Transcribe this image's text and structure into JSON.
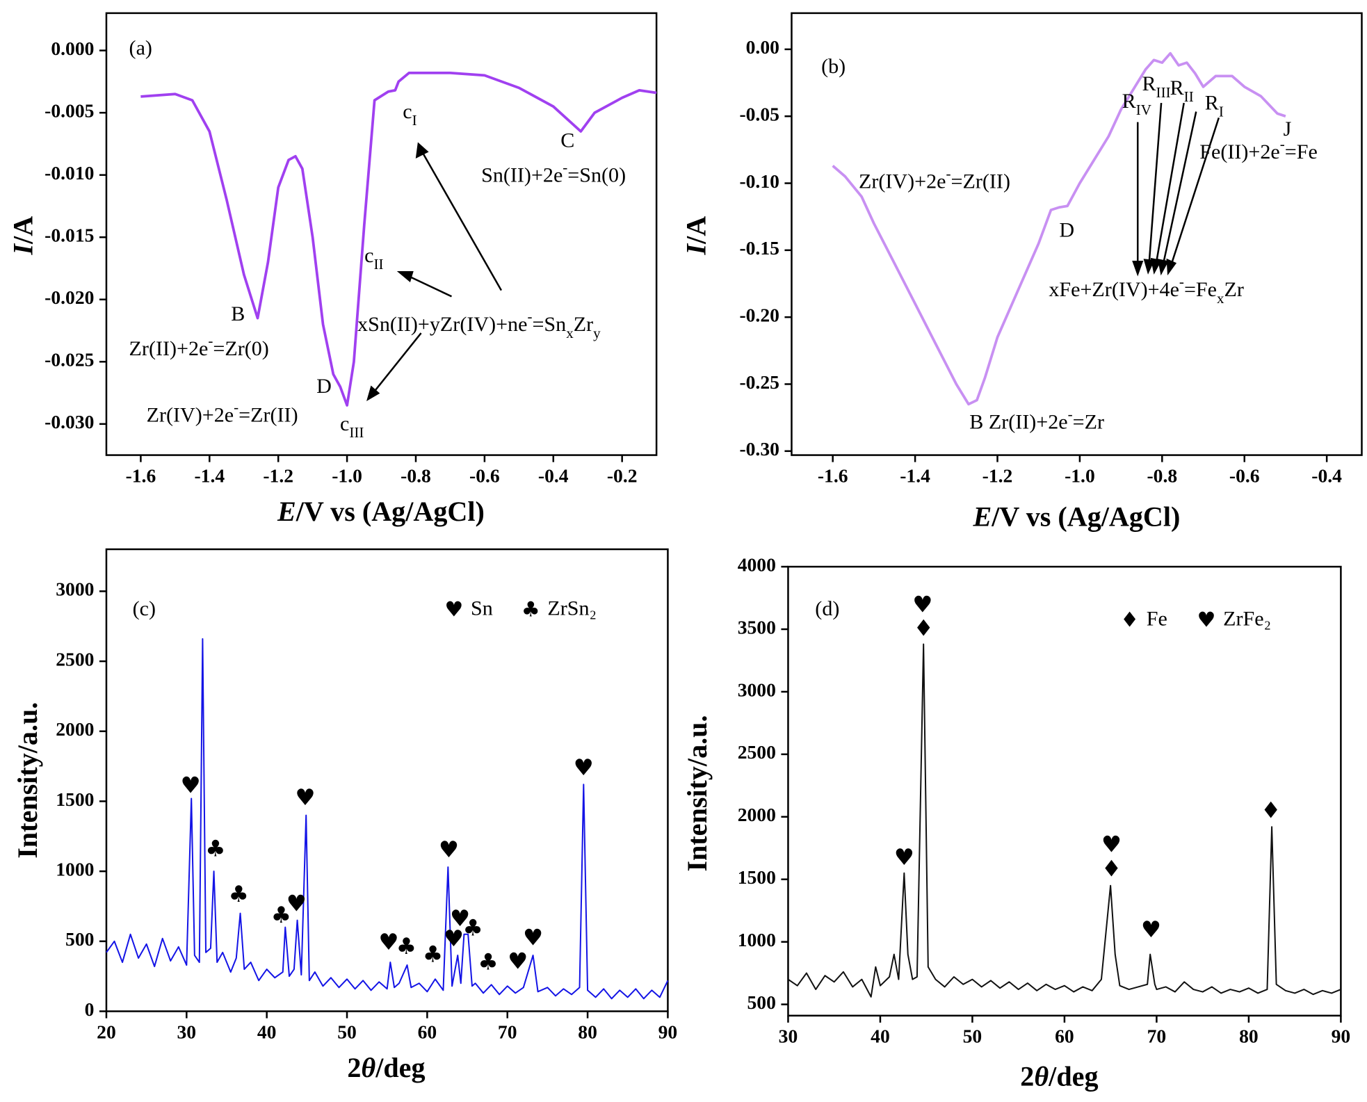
{
  "chart_data": [
    {
      "type": "line",
      "color": "#a040f0",
      "x": [
        -1.6,
        -1.5,
        -1.45,
        -1.4,
        -1.35,
        -1.3,
        -1.26,
        -1.23,
        -1.2,
        -1.17,
        -1.15,
        -1.13,
        -1.1,
        -1.07,
        -1.04,
        -1.02,
        -1.0,
        -0.98,
        -0.95,
        -0.92,
        -0.88,
        -0.86,
        -0.85,
        -0.82,
        -0.7,
        -0.6,
        -0.5,
        -0.4,
        -0.32,
        -0.28,
        -0.2,
        -0.15,
        -0.1
      ],
      "values": [
        -0.0037,
        -0.0035,
        -0.004,
        -0.0065,
        -0.012,
        -0.018,
        -0.0215,
        -0.017,
        -0.011,
        -0.0088,
        -0.0085,
        -0.0095,
        -0.015,
        -0.022,
        -0.026,
        -0.027,
        -0.0285,
        -0.025,
        -0.014,
        -0.004,
        -0.0033,
        -0.0032,
        -0.0025,
        -0.0018,
        -0.0018,
        -0.002,
        -0.003,
        -0.0045,
        -0.0065,
        -0.005,
        -0.0038,
        -0.0032,
        -0.0034
      ],
      "xlim": [
        -1.7,
        -0.1
      ],
      "ylim": [
        -0.0325,
        0.003
      ],
      "xticks": [
        {
          "value": -1.6,
          "label": "-1.6"
        },
        {
          "value": -1.4,
          "label": "-1.4"
        },
        {
          "value": -1.2,
          "label": "-1.2"
        },
        {
          "value": -1.0,
          "label": "-1.0"
        },
        {
          "value": -0.8,
          "label": "-0.8"
        },
        {
          "value": -0.6,
          "label": "-0.6"
        },
        {
          "value": -0.4,
          "label": "-0.4"
        },
        {
          "value": -0.2,
          "label": "-0.2"
        }
      ],
      "yticks": [
        {
          "value": 0,
          "label": "0.000"
        },
        {
          "value": -0.005,
          "label": "-0.005"
        },
        {
          "value": -0.01,
          "label": "-0.010"
        },
        {
          "value": -0.015,
          "label": "-0.015"
        },
        {
          "value": -0.02,
          "label": "-0.020"
        },
        {
          "value": -0.025,
          "label": "-0.025"
        },
        {
          "value": -0.03,
          "label": "-0.030"
        }
      ],
      "x_label": [
        {
          "t": "E",
          "style": "i"
        },
        "/V vs (Ag/AgCl)"
      ],
      "y_label": [
        {
          "t": "I",
          "style": "i"
        },
        "/A"
      ],
      "annotations": [
        [
          "(a)"
        ],
        [
          "c",
          {
            "t": "I",
            "style": "sub"
          }
        ],
        [
          "C"
        ],
        [
          "Sn(II)+2e",
          {
            "t": "-",
            "style": "sup"
          },
          "=Sn(0)"
        ],
        [
          "c",
          {
            "t": "II",
            "style": "sub"
          }
        ],
        [
          "B"
        ],
        [
          "xSn(II)+yZr(IV)+ne",
          {
            "t": "-",
            "style": "sup"
          },
          "=Sn",
          {
            "t": "x",
            "style": "sub"
          },
          "Zr",
          {
            "t": "y",
            "style": "sub"
          }
        ],
        [
          "Zr(II)+2e",
          {
            "t": "-",
            "style": "sup"
          },
          "=Zr(0)"
        ],
        [
          "D"
        ],
        [
          "Zr(IV)+2e",
          {
            "t": "-",
            "style": "sup"
          },
          "=Zr(II)"
        ],
        [
          "c",
          {
            "t": "III",
            "style": "sub"
          }
        ]
      ]
    },
    {
      "type": "line",
      "color": "#c890f2",
      "x": [
        -1.6,
        -1.57,
        -1.53,
        -1.5,
        -1.45,
        -1.4,
        -1.35,
        -1.3,
        -1.27,
        -1.25,
        -1.23,
        -1.2,
        -1.15,
        -1.1,
        -1.07,
        -1.05,
        -1.03,
        -1.0,
        -0.97,
        -0.93,
        -0.9,
        -0.87,
        -0.84,
        -0.82,
        -0.8,
        -0.78,
        -0.76,
        -0.74,
        -0.72,
        -0.7,
        -0.67,
        -0.63,
        -0.6,
        -0.56,
        -0.52,
        -0.5
      ],
      "values": [
        -0.087,
        -0.095,
        -0.11,
        -0.13,
        -0.16,
        -0.19,
        -0.22,
        -0.25,
        -0.265,
        -0.262,
        -0.245,
        -0.215,
        -0.18,
        -0.145,
        -0.12,
        -0.118,
        -0.117,
        -0.1,
        -0.085,
        -0.065,
        -0.045,
        -0.03,
        -0.015,
        -0.008,
        -0.01,
        -0.003,
        -0.012,
        -0.01,
        -0.018,
        -0.028,
        -0.02,
        -0.02,
        -0.028,
        -0.035,
        -0.048,
        -0.05
      ],
      "xlim": [
        -1.7,
        -0.315
      ],
      "ylim": [
        -0.303,
        0.027
      ],
      "xticks": [
        {
          "value": -1.6,
          "label": "-1.6"
        },
        {
          "value": -1.4,
          "label": "-1.4"
        },
        {
          "value": -1.2,
          "label": "-1.2"
        },
        {
          "value": -1.0,
          "label": "-1.0"
        },
        {
          "value": -0.8,
          "label": "-0.8"
        },
        {
          "value": -0.6,
          "label": "-0.6"
        },
        {
          "value": -0.4,
          "label": "-0.4"
        }
      ],
      "yticks": [
        {
          "value": 0,
          "label": "0.00"
        },
        {
          "value": -0.05,
          "label": "-0.05"
        },
        {
          "value": -0.1,
          "label": "-0.10"
        },
        {
          "value": -0.15,
          "label": "-0.15"
        },
        {
          "value": -0.2,
          "label": "-0.20"
        },
        {
          "value": -0.25,
          "label": "-0.25"
        },
        {
          "value": -0.3,
          "label": "-0.30"
        }
      ],
      "x_label": [
        {
          "t": "E",
          "style": "i"
        },
        "/V vs (Ag/AgCl)"
      ],
      "y_label": [
        {
          "t": "I",
          "style": "i"
        },
        "/A"
      ],
      "annotations": [
        [
          "(b)"
        ],
        [
          "R",
          {
            "t": "IV",
            "style": "sub"
          }
        ],
        [
          "R",
          {
            "t": "III",
            "style": "sub"
          }
        ],
        [
          "R",
          {
            "t": "II",
            "style": "sub"
          }
        ],
        [
          "R",
          {
            "t": "I",
            "style": "sub"
          }
        ],
        [
          "J"
        ],
        [
          "Fe(II)+2e",
          {
            "t": "-",
            "style": "sup"
          },
          "=Fe"
        ],
        [
          "Zr(IV)+2e",
          {
            "t": "-",
            "style": "sup"
          },
          "=Zr(II)"
        ],
        [
          "D"
        ],
        [
          "xFe+Zr(IV)+4e",
          {
            "t": "-",
            "style": "sup"
          },
          "=Fe",
          {
            "t": "x",
            "style": "sub"
          },
          "Zr"
        ],
        [
          "B  Zr(II)+2e",
          {
            "t": "-",
            "style": "sup"
          },
          "=Zr"
        ]
      ]
    },
    {
      "type": "line",
      "color": "#1414e6",
      "x": [
        20,
        21,
        22,
        23,
        24,
        25,
        26,
        27,
        28,
        29,
        30,
        30.6,
        31,
        31.6,
        32.0,
        32.4,
        33,
        33.4,
        33.8,
        34.5,
        35.5,
        36.2,
        36.7,
        37.2,
        38,
        39,
        40,
        41,
        42,
        42.3,
        42.8,
        43.4,
        43.8,
        44.3,
        44.9,
        45.3,
        46,
        47,
        48,
        49,
        50,
        51,
        52,
        53,
        54,
        55,
        55.4,
        55.9,
        56.5,
        57.5,
        58,
        59,
        60,
        61,
        62,
        62.6,
        63.1,
        63.8,
        64.2,
        64.6,
        65.1,
        65.6,
        66,
        67,
        68,
        69,
        70,
        71,
        72,
        73.2,
        73.8,
        75,
        76,
        77,
        78,
        79,
        79.5,
        80,
        81,
        82,
        83,
        84,
        85,
        86,
        87,
        88,
        89,
        90
      ],
      "values": [
        420,
        500,
        350,
        550,
        380,
        480,
        320,
        520,
        360,
        460,
        330,
        1520,
        400,
        350,
        2660,
        420,
        450,
        1000,
        350,
        420,
        280,
        380,
        700,
        300,
        350,
        220,
        300,
        240,
        280,
        600,
        250,
        300,
        650,
        260,
        1400,
        220,
        280,
        180,
        240,
        170,
        230,
        160,
        220,
        150,
        210,
        160,
        350,
        170,
        200,
        330,
        170,
        200,
        140,
        230,
        150,
        1030,
        180,
        400,
        200,
        550,
        550,
        180,
        200,
        130,
        190,
        120,
        180,
        130,
        170,
        400,
        140,
        170,
        110,
        160,
        120,
        170,
        1620,
        150,
        100,
        160,
        90,
        150,
        100,
        160,
        90,
        150,
        100,
        220
      ],
      "xlim": [
        20,
        90
      ],
      "ylim": [
        0,
        3300
      ],
      "xticks": [
        20,
        30,
        40,
        50,
        60,
        70,
        80,
        90
      ],
      "yticks": [
        0,
        500,
        1000,
        1500,
        2000,
        2500,
        3000
      ],
      "x_label": [
        "2",
        {
          "t": "θ",
          "style": "i"
        },
        "/deg"
      ],
      "y_label": [
        "Intensity/a.u."
      ],
      "annotations": [
        [
          "(c)"
        ]
      ],
      "markers": [
        {
          "name": "Sn",
          "symbol": "♥",
          "color": "#e8141c",
          "x": [
            30.5,
            44.8,
            62.7,
            43.7,
            55.2,
            64.1,
            63.3,
            71.3,
            73.2,
            79.5
          ],
          "y": [
            1605,
            1518,
            1145,
            759,
            485,
            653,
            510,
            348,
            516,
            1730
          ]
        },
        {
          "name": "ZrSn₂",
          "symbol": "♣",
          "color": "#000000",
          "x": [
            33.6,
            36.5,
            41.8,
            57.4,
            60.7,
            65.7,
            67.6
          ],
          "y": [
            1151,
            828,
            678,
            454,
            398,
            585,
            342
          ]
        }
      ],
      "legend_text_colored": false
    },
    {
      "type": "line",
      "color": "#111111",
      "x": [
        30,
        31,
        32,
        33,
        34,
        35,
        36,
        37,
        38,
        39,
        39.5,
        40,
        41,
        41.5,
        42,
        42.6,
        43,
        43.5,
        44,
        44.7,
        45.2,
        46,
        47,
        48,
        49,
        50,
        51,
        52,
        53,
        54,
        55,
        56,
        57,
        58,
        59,
        60,
        61,
        62,
        63,
        64,
        65,
        65.5,
        66,
        67,
        68,
        69,
        69.3,
        69.8,
        70,
        71,
        72,
        73,
        74,
        75,
        76,
        77,
        78,
        79,
        80,
        81,
        82,
        82.5,
        83,
        84,
        85,
        86,
        87,
        88,
        89,
        90
      ],
      "values": [
        700,
        650,
        750,
        620,
        730,
        680,
        760,
        640,
        700,
        560,
        800,
        650,
        720,
        900,
        700,
        1550,
        900,
        700,
        720,
        3380,
        800,
        700,
        640,
        720,
        660,
        700,
        640,
        690,
        630,
        680,
        620,
        670,
        610,
        660,
        620,
        650,
        600,
        640,
        610,
        700,
        1450,
        900,
        650,
        620,
        640,
        660,
        900,
        660,
        620,
        640,
        600,
        680,
        620,
        600,
        640,
        590,
        620,
        600,
        630,
        590,
        620,
        1920,
        660,
        610,
        590,
        620,
        580,
        610,
        590,
        620
      ],
      "xlim": [
        30,
        90
      ],
      "ylim": [
        410,
        4000
      ],
      "xticks": [
        30,
        40,
        50,
        60,
        70,
        80,
        90
      ],
      "yticks": [
        500,
        1000,
        1500,
        2000,
        2500,
        3000,
        3500,
        4000
      ],
      "x_label": [
        "2",
        {
          "t": "θ",
          "style": "i"
        },
        "/deg"
      ],
      "y_label": [
        "Intensity/a.u."
      ],
      "annotations": [
        [
          "(d)"
        ]
      ],
      "markers": [
        {
          "name": "Fe",
          "symbol": "♦",
          "color": "#1428e0",
          "x": [
            44.7,
            65.1,
            82.4
          ],
          "y": [
            3498,
            1574,
            2041
          ]
        },
        {
          "name": "ZrFe₂",
          "symbol": "♥",
          "color": "#e8141c",
          "x": [
            42.6,
            44.6,
            65.1,
            69.4
          ],
          "y": [
            1665,
            3687,
            1769,
            1086
          ]
        }
      ],
      "legend_text_colored": true
    }
  ]
}
